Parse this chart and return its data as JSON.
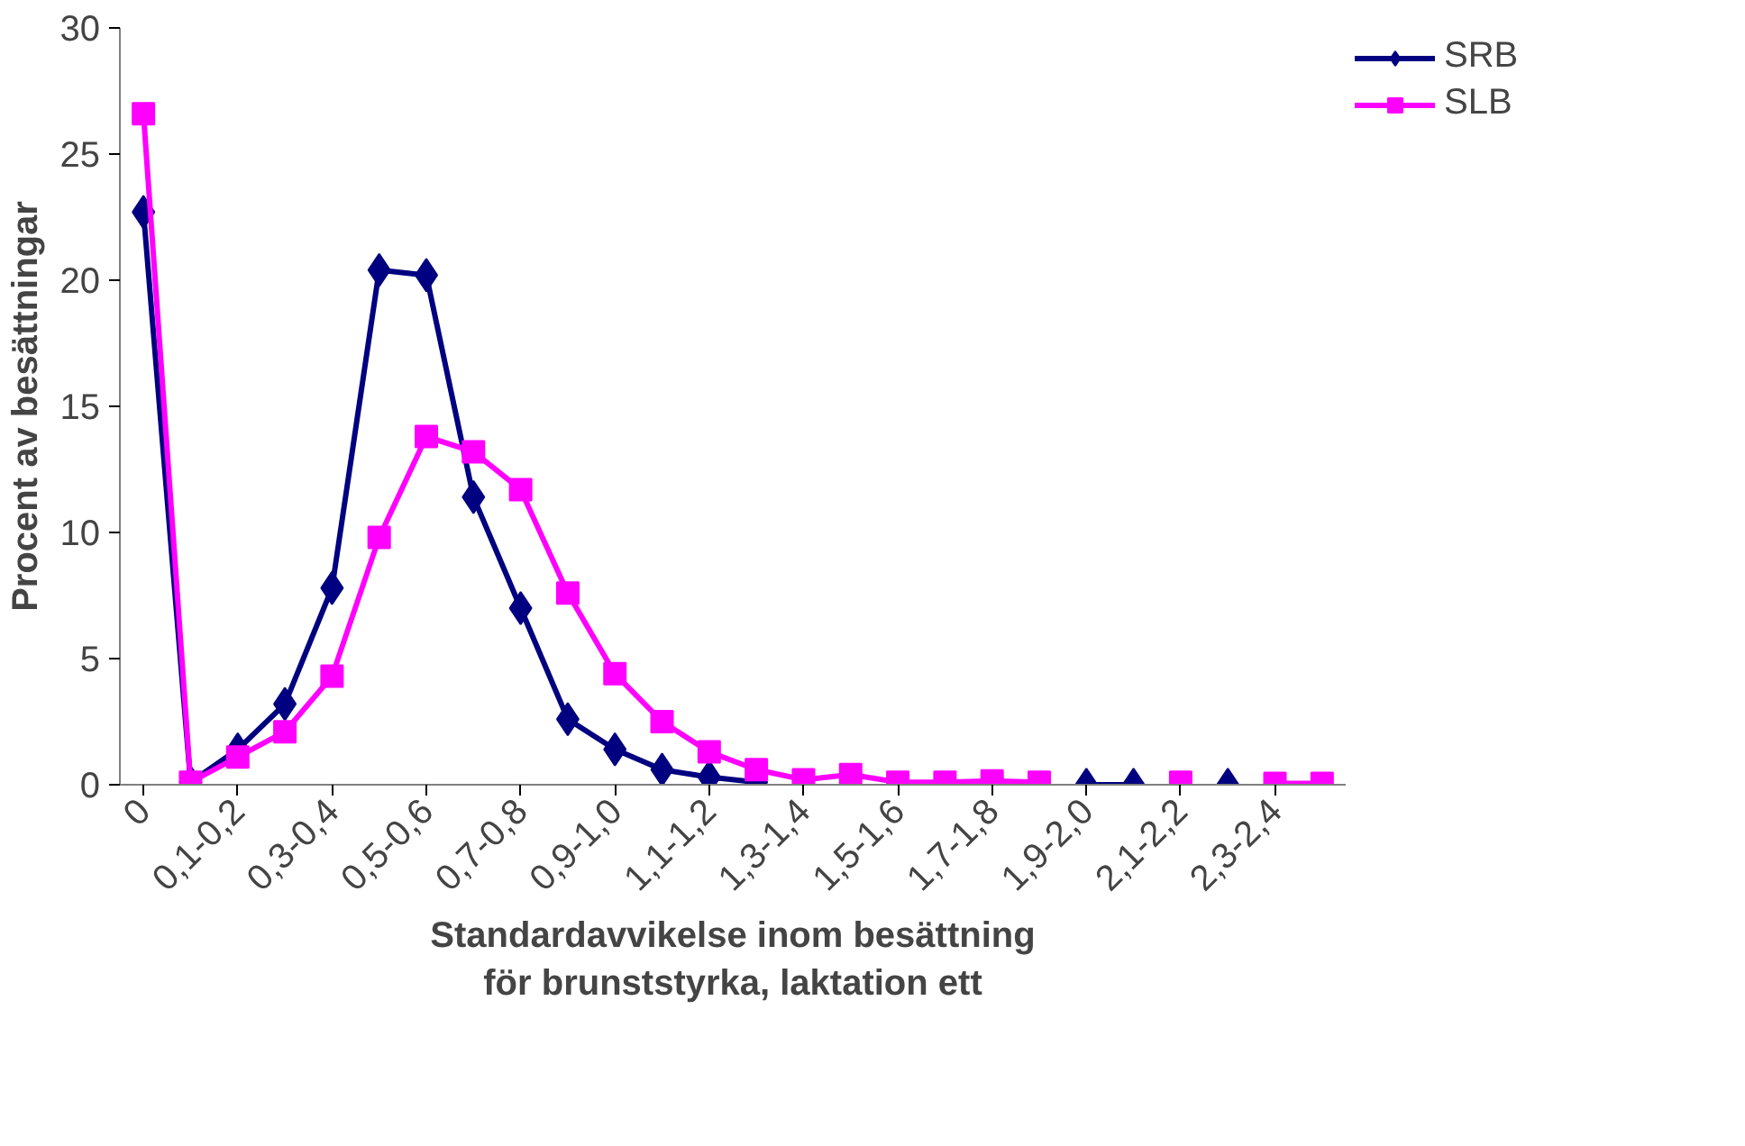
{
  "chart_data": {
    "type": "line",
    "xlabel": "Standardavvikelse inom besättning för brunststyrka, laktation ett",
    "ylabel": "Procent av besättningar",
    "categories": [
      "0",
      null,
      "0,1-0,2",
      null,
      "0,3-0,4",
      null,
      "0,5-0,6",
      null,
      "0,7-0,8",
      null,
      "0,9-1,0",
      null,
      "1,1-1,2",
      null,
      "1,3-1,4",
      null,
      "1,5-1,6",
      null,
      "1,7-1,8",
      null,
      "1,9-2,0",
      null,
      "2,1-2,2",
      null,
      "2,3-2,4",
      null
    ],
    "series": [
      {
        "name": "SRB",
        "color": "#000080",
        "marker": "diamond",
        "values": [
          22.7,
          0.1,
          1.4,
          3.2,
          7.8,
          20.4,
          20.2,
          11.4,
          7.0,
          2.6,
          1.4,
          0.6,
          0.3,
          0.1,
          null,
          null,
          null,
          null,
          null,
          null,
          0,
          0,
          null,
          0,
          null,
          null
        ]
      },
      {
        "name": "SLB",
        "color": "#ff00ff",
        "marker": "square",
        "values": [
          26.6,
          0.1,
          1.1,
          2.1,
          4.3,
          9.8,
          13.8,
          13.2,
          11.7,
          7.6,
          4.4,
          2.5,
          1.3,
          0.6,
          0.2,
          0.4,
          0.1,
          0.1,
          0.15,
          0.1,
          null,
          null,
          0.1,
          null,
          0.05,
          0.05
        ]
      }
    ],
    "ylim": [
      0,
      30
    ],
    "yticks": [
      0,
      5,
      10,
      15,
      20,
      25,
      30
    ],
    "grid": false,
    "legend": "right"
  }
}
